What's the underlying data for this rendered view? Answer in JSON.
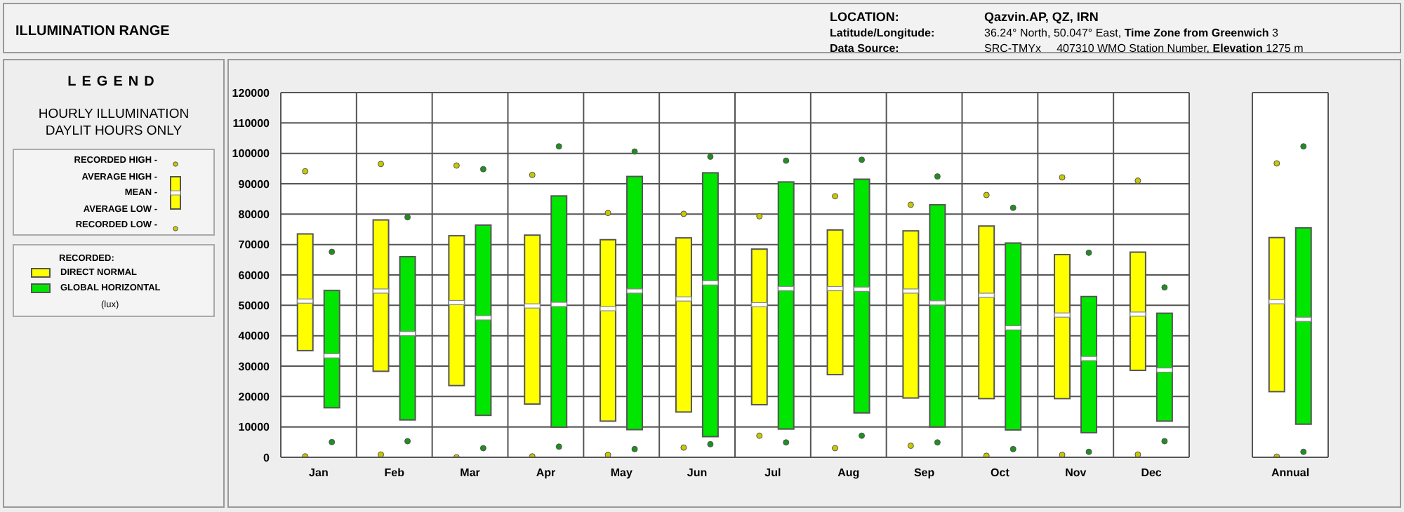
{
  "chart_data": [
    {
      "type": "box",
      "title": "ILLUMINATION RANGE",
      "subtitle": "HOURLY ILLUMINATION DAYLIT HOURS ONLY",
      "legend_title": "RECORDED:",
      "legend": "left",
      "grid": true,
      "annotations": [
        "LOCATION:",
        "Qazvin.AP, QZ, IRN",
        "Latitude/Longitude:",
        "36.24° North, 50.047° East,",
        "Time Zone from Greenwich",
        "3",
        "Data Source:",
        "SRC-TMYx",
        "407310 WMO Station Number,",
        "Elevation",
        "1275 m",
        "LEGEND",
        "RECORDED HIGH -",
        "AVERAGE HIGH -",
        "MEAN -",
        "AVERAGE LOW -",
        "RECORDED LOW -",
        "(lux)"
      ],
      "categories": [
        "Jan",
        "Feb",
        "Mar",
        "Apr",
        "May",
        "Jun",
        "Jul",
        "Aug",
        "Sep",
        "Oct",
        "Nov",
        "Dec"
      ],
      "ylim": [
        0,
        120000
      ],
      "yticks": [
        0,
        10000,
        20000,
        30000,
        40000,
        50000,
        60000,
        70000,
        80000,
        90000,
        100000,
        110000,
        120000
      ],
      "series": [
        {
          "name": "DIRECT NORMAL",
          "color": "#ffff00",
          "boxes": [
            {
              "q1": 35100,
              "median": 51400,
              "q3": 73500
            },
            {
              "q1": 28300,
              "median": 54700,
              "q3": 78100
            },
            {
              "q1": 23600,
              "median": 50900,
              "q3": 72900
            },
            {
              "q1": 17500,
              "median": 49800,
              "q3": 73100
            },
            {
              "q1": 11900,
              "median": 48900,
              "q3": 71600
            },
            {
              "q1": 14900,
              "median": 52100,
              "q3": 72200
            },
            {
              "q1": 17300,
              "median": 50200,
              "q3": 68500
            },
            {
              "q1": 27200,
              "median": 55500,
              "q3": 74800
            },
            {
              "q1": 19500,
              "median": 54700,
              "q3": 74500
            },
            {
              "q1": 19300,
              "median": 53300,
              "q3": 76100
            },
            {
              "q1": 19300,
              "median": 46800,
              "q3": 66700
            },
            {
              "q1": 28600,
              "median": 47100,
              "q3": 67500
            }
          ]
        },
        {
          "name": "GLOBAL HORIZONTAL",
          "color": "#00e600",
          "boxes": [
            {
              "q1": 16300,
              "median": 33400,
              "q3": 54900
            },
            {
              "q1": 12300,
              "median": 40700,
              "q3": 66000
            },
            {
              "q1": 13800,
              "median": 45900,
              "q3": 76400
            },
            {
              "q1": 9900,
              "median": 50300,
              "q3": 86000
            },
            {
              "q1": 9100,
              "median": 54700,
              "q3": 92400
            },
            {
              "q1": 6800,
              "median": 57400,
              "q3": 93600
            },
            {
              "q1": 9300,
              "median": 55500,
              "q3": 90600
            },
            {
              "q1": 14600,
              "median": 55300,
              "q3": 91500
            },
            {
              "q1": 10000,
              "median": 50800,
              "q3": 83100
            },
            {
              "q1": 9000,
              "median": 42600,
              "q3": 70500
            },
            {
              "q1": 8100,
              "median": 32500,
              "q3": 52900
            },
            {
              "q1": 11900,
              "median": 28700,
              "q3": 47400
            }
          ]
        },
        {
          "type": "scatter",
          "color": "#c8c800",
          "x": [
            "Jan",
            "Feb",
            "Mar",
            "Apr",
            "May",
            "Jun",
            "Jul",
            "Aug",
            "Sep",
            "Oct",
            "Nov",
            "Dec"
          ],
          "values": [
            94100,
            96500,
            96000,
            92900,
            80400,
            80100,
            79300,
            85900,
            83100,
            86300,
            92100,
            91000
          ]
        },
        {
          "type": "scatter",
          "color": "#c8c800",
          "x": [
            "Jan",
            "Feb",
            "Mar",
            "Apr",
            "May",
            "Jun",
            "Jul",
            "Aug",
            "Sep",
            "Oct",
            "Nov",
            "Dec"
          ],
          "values": [
            300,
            900,
            0,
            300,
            800,
            3200,
            7100,
            3000,
            3800,
            500,
            800,
            900
          ]
        },
        {
          "type": "scatter",
          "color": "#1f8f1f",
          "x": [
            "Jan",
            "Feb",
            "Mar",
            "Apr",
            "May",
            "Jun",
            "Jul",
            "Aug",
            "Sep",
            "Oct",
            "Nov",
            "Dec"
          ],
          "values": [
            67600,
            79000,
            94800,
            102300,
            100600,
            98900,
            97600,
            97900,
            92400,
            82100,
            67300,
            55900
          ]
        },
        {
          "type": "scatter",
          "color": "#1f8f1f",
          "x": [
            "Jan",
            "Feb",
            "Mar",
            "Apr",
            "May",
            "Jun",
            "Jul",
            "Aug",
            "Sep",
            "Oct",
            "Nov",
            "Dec"
          ],
          "values": [
            5000,
            5300,
            3000,
            3500,
            2700,
            4300,
            4900,
            7100,
            4900,
            2700,
            1800,
            5300
          ]
        }
      ]
    },
    {
      "type": "box",
      "grid": true,
      "tick_labels": "x",
      "categories": [
        "Annual"
      ],
      "ylim": [
        0,
        120000
      ],
      "yticks": [
        0,
        10000,
        20000,
        30000,
        40000,
        50000,
        60000,
        70000,
        80000,
        90000,
        100000,
        110000,
        120000
      ],
      "series": [
        {
          "color": "#ffff00",
          "boxes": [
            {
              "q1": 21600,
              "median": 51200,
              "q3": 72300
            }
          ]
        },
        {
          "color": "#00e600",
          "boxes": [
            {
              "q1": 10900,
              "median": 45400,
              "q3": 75500
            }
          ]
        },
        {
          "type": "scatter",
          "color": "#c8c800",
          "x": [
            "Annual"
          ],
          "values": [
            96700
          ]
        },
        {
          "type": "scatter",
          "color": "#c8c800",
          "x": [
            "Annual"
          ],
          "values": [
            200
          ]
        },
        {
          "type": "scatter",
          "color": "#1f8f1f",
          "x": [
            "Annual"
          ],
          "values": [
            102300
          ]
        },
        {
          "type": "scatter",
          "color": "#1f8f1f",
          "x": [
            "Annual"
          ],
          "values": [
            1800
          ]
        }
      ]
    }
  ]
}
